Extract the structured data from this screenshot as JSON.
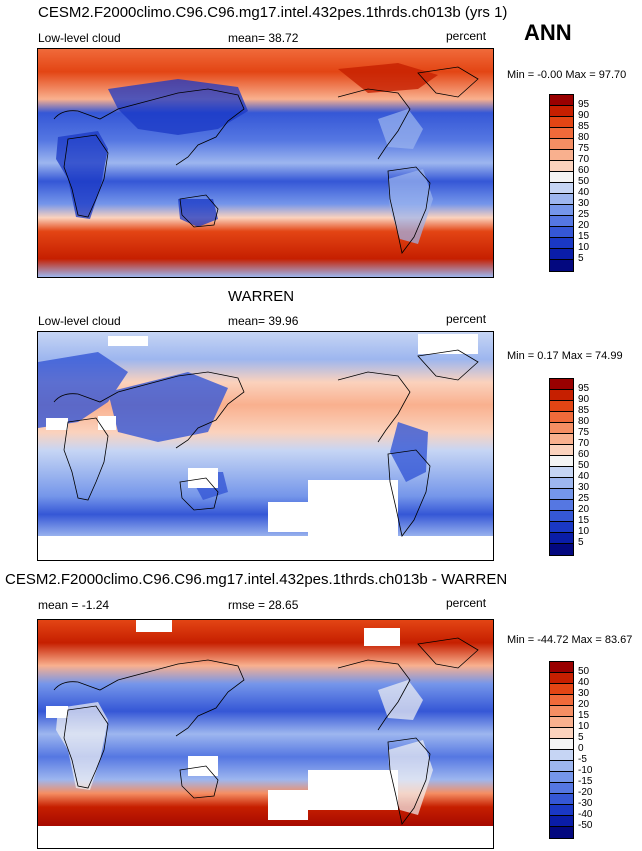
{
  "season": "ANN",
  "panels": [
    {
      "title": "CESM2.F2000climo.C96.C96.mg17.intel.432pes.1thrds.ch013b (yrs 1)",
      "left_label": "Low-level cloud",
      "center_label": "mean=  38.72",
      "right_label": "percent",
      "minmax": "Min =  -0.00 Max =  97.70",
      "colorbar": {
        "labels": [
          "95",
          "90",
          "85",
          "80",
          "75",
          "70",
          "60",
          "50",
          "40",
          "30",
          "25",
          "20",
          "15",
          "10",
          "5"
        ],
        "colors": [
          "#990000",
          "#c61f00",
          "#e34514",
          "#f06a3a",
          "#f58e63",
          "#f9b08e",
          "#fbd2bd",
          "#f4f4f4",
          "#c6d5f4",
          "#9db6ef",
          "#7596ea",
          "#5577e2",
          "#3557d6",
          "#1a38c5",
          "#0a1da8",
          "#03087f"
        ]
      }
    },
    {
      "title": "WARREN",
      "left_label": "Low-level cloud",
      "center_label": "mean=  39.96",
      "right_label": "percent",
      "minmax": "Min =  0.17 Max =  74.99",
      "colorbar": {
        "labels": [
          "95",
          "90",
          "85",
          "80",
          "75",
          "70",
          "60",
          "50",
          "40",
          "30",
          "25",
          "20",
          "15",
          "10",
          "5"
        ],
        "colors": [
          "#990000",
          "#c61f00",
          "#e34514",
          "#f06a3a",
          "#f58e63",
          "#f9b08e",
          "#fbd2bd",
          "#f4f4f4",
          "#c6d5f4",
          "#9db6ef",
          "#7596ea",
          "#5577e2",
          "#3557d6",
          "#1a38c5",
          "#0a1da8",
          "#03087f"
        ]
      }
    },
    {
      "title": "CESM2.F2000climo.C96.C96.mg17.intel.432pes.1thrds.ch013b - WARREN",
      "left_label": "mean =  -1.24",
      "center_label": "rmse =  28.65",
      "right_label": "percent",
      "minmax": "Min = -44.72 Max =  83.67",
      "colorbar": {
        "labels": [
          "50",
          "40",
          "30",
          "20",
          "15",
          "10",
          "5",
          "0",
          "-5",
          "-10",
          "-15",
          "-20",
          "-30",
          "-40",
          "-50"
        ],
        "colors": [
          "#990000",
          "#c61f00",
          "#e34514",
          "#f06a3a",
          "#f58e63",
          "#f9b08e",
          "#fbd2bd",
          "#f4f4f4",
          "#c6d5f4",
          "#9db6ef",
          "#7596ea",
          "#5577e2",
          "#3557d6",
          "#1a38c5",
          "#0a1da8",
          "#03087f"
        ]
      }
    }
  ]
}
